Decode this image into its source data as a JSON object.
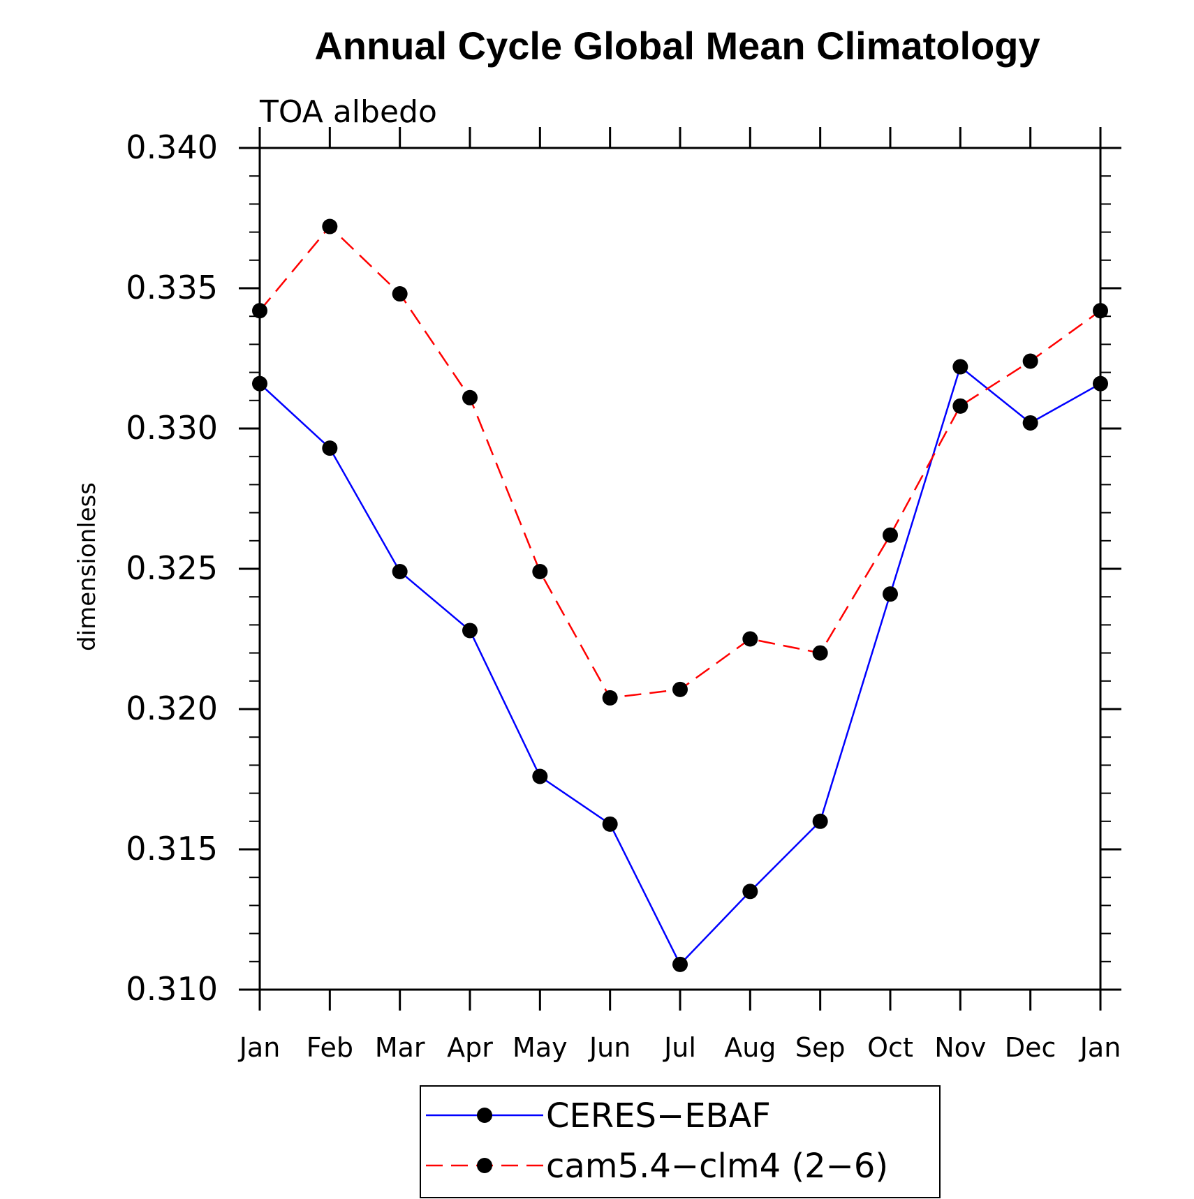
{
  "chart_data": {
    "type": "line",
    "title": "Annual Cycle Global Mean Climatology",
    "subtitle": "TOA albedo",
    "xlabel": "",
    "ylabel": "dimensionless",
    "categories": [
      "Jan",
      "Feb",
      "Mar",
      "Apr",
      "May",
      "Jun",
      "Jul",
      "Aug",
      "Sep",
      "Oct",
      "Nov",
      "Dec",
      "Jan"
    ],
    "ylim": [
      0.31,
      0.34
    ],
    "yticks": [
      "0.310",
      "0.315",
      "0.320",
      "0.325",
      "0.330",
      "0.335",
      "0.340"
    ],
    "grid": false,
    "legend_position": "bottom",
    "series": [
      {
        "name": "CERES−EBAF",
        "color": "#0000ff",
        "line_style": "solid",
        "marker": "filled-circle",
        "values": [
          0.3316,
          0.3293,
          0.3249,
          0.3228,
          0.3176,
          0.3159,
          0.3109,
          0.3135,
          0.316,
          0.3241,
          0.3322,
          0.3302,
          0.3316
        ]
      },
      {
        "name": "cam5.4−clm4 (2−6)",
        "color": "#ff0000",
        "line_style": "dashed",
        "marker": "filled-circle",
        "values": [
          0.3342,
          0.3372,
          0.3348,
          0.3311,
          0.3249,
          0.3204,
          0.3207,
          0.3225,
          0.322,
          0.3262,
          0.3308,
          0.3324,
          0.3342
        ]
      }
    ]
  }
}
